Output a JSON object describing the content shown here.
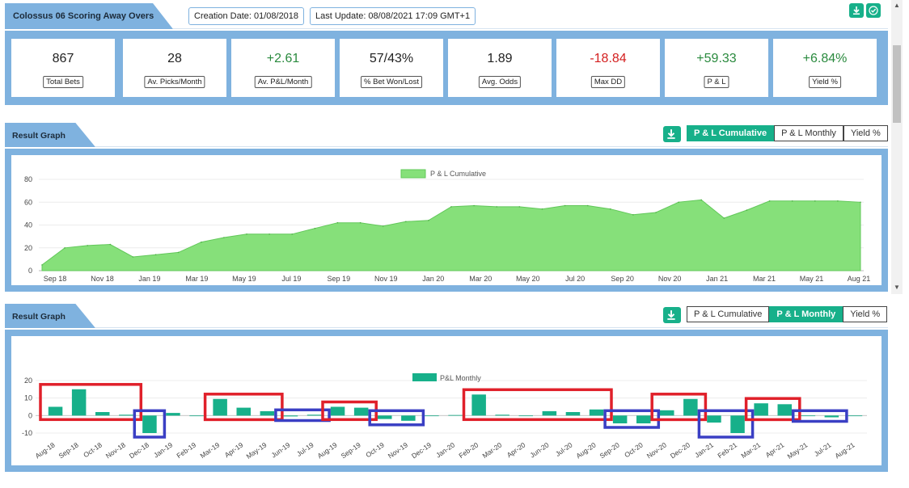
{
  "header": {
    "title": "Colossus 06 Scoring Away Overs",
    "creation_date": "Creation Date: 01/08/2018",
    "last_update": "Last Update: 08/08/2021 17:09 GMT+1",
    "download_icon": "download-icon",
    "check_icon": "check-icon"
  },
  "stats": [
    {
      "value": "867",
      "label": "Total Bets",
      "tone": "neutral"
    },
    {
      "value": "28",
      "label": "Av. Picks/Month",
      "tone": "neutral"
    },
    {
      "value": "+2.61",
      "label": "Av. P&L/Month",
      "tone": "pos"
    },
    {
      "value": "57/43%",
      "label": "% Bet Won/Lost",
      "tone": "neutral"
    },
    {
      "value": "1.89",
      "label": "Avg. Odds",
      "tone": "neutral"
    },
    {
      "value": "-18.84",
      "label": "Max DD",
      "tone": "neg"
    },
    {
      "value": "+59.33",
      "label": "P & L",
      "tone": "pos"
    },
    {
      "value": "+6.84%",
      "label": "Yield %",
      "tone": "pos"
    }
  ],
  "section1": {
    "title": "Result Graph",
    "tabs": [
      "P & L Cumulative",
      "P & L Monthly",
      "Yield %"
    ],
    "active_tab": 0
  },
  "section2": {
    "title": "Result Graph",
    "tabs": [
      "P & L Cumulative",
      "P & L Monthly",
      "Yield %"
    ],
    "active_tab": 1
  },
  "colors": {
    "accent": "#17b08a",
    "panel": "#7fb2df",
    "area_fill": "#86e07a",
    "highlight_red": "#e0202a",
    "highlight_blue": "#3a3fc4"
  },
  "chart_data": [
    {
      "type": "area",
      "legend": "P & L Cumulative",
      "ylim": [
        0,
        80
      ],
      "yticks": [
        0,
        20,
        40,
        60,
        80
      ],
      "xticks": [
        "Sep 18",
        "Nov 18",
        "Jan 19",
        "Mar 19",
        "May 19",
        "Jul 19",
        "Sep 19",
        "Nov 19",
        "Jan 20",
        "Mar 20",
        "May 20",
        "Jul 20",
        "Sep 20",
        "Nov 20",
        "Jan 21",
        "Mar 21",
        "May 21",
        "Aug 21"
      ],
      "x": [
        "Aug 18",
        "Sep 18",
        "Oct 18",
        "Nov 18",
        "Dec 18",
        "Jan 19",
        "Feb 19",
        "Mar 19",
        "Apr 19",
        "May 19",
        "Jun 19",
        "Jul 19",
        "Aug 19",
        "Sep 19",
        "Oct 19",
        "Nov 19",
        "Dec 19",
        "Jan 20",
        "Feb 20",
        "Mar 20",
        "Apr 20",
        "May 20",
        "Jun 20",
        "Jul 20",
        "Aug 20",
        "Sep 20",
        "Oct 20",
        "Nov 20",
        "Dec 20",
        "Jan 21",
        "Feb 21",
        "Mar 21",
        "Apr 21",
        "May 21",
        "Jun 21",
        "Jul 21",
        "Aug 21"
      ],
      "values": [
        5,
        20,
        22,
        23,
        12,
        14,
        16,
        25,
        29,
        32,
        32,
        32,
        37,
        42,
        42,
        39,
        43,
        44,
        56,
        57,
        56,
        56,
        54,
        57,
        57,
        54,
        49,
        51,
        60,
        62,
        46,
        53,
        61,
        61,
        61,
        61,
        60
      ],
      "grid": true
    },
    {
      "type": "bar",
      "legend": "P&L Monthly",
      "ylim": [
        -10,
        20
      ],
      "yticks": [
        -10,
        0,
        10,
        20
      ],
      "categories": [
        "Aug-18",
        "Sep-18",
        "Oct-18",
        "Nov-18",
        "Dec-18",
        "Jan-19",
        "Feb-19",
        "Mar-19",
        "Apr-19",
        "May-19",
        "Jun-19",
        "Jul-19",
        "Aug-19",
        "Sep-19",
        "Oct-19",
        "Nov-19",
        "Dec-19",
        "Jan-20",
        "Feb-20",
        "Mar-20",
        "Apr-20",
        "Jun-20",
        "Jul-20",
        "Aug-20",
        "Sep-20",
        "Oct-20",
        "Nov-20",
        "Dec-20",
        "Jan-21",
        "Feb-21",
        "Mar-21",
        "Apr-21",
        "May-21",
        "Jul-21",
        "Aug-21"
      ],
      "values": [
        5,
        15,
        2,
        0.5,
        -10,
        1.5,
        0,
        9.5,
        4.5,
        2.5,
        -0.5,
        0.5,
        5,
        4.5,
        -2,
        -3,
        0,
        0.3,
        12,
        0.5,
        0,
        2.5,
        2,
        3.5,
        -4.5,
        -4.5,
        3,
        9.5,
        -4,
        -10,
        7,
        6.5,
        0,
        -1,
        0
      ],
      "grid": true
    }
  ]
}
